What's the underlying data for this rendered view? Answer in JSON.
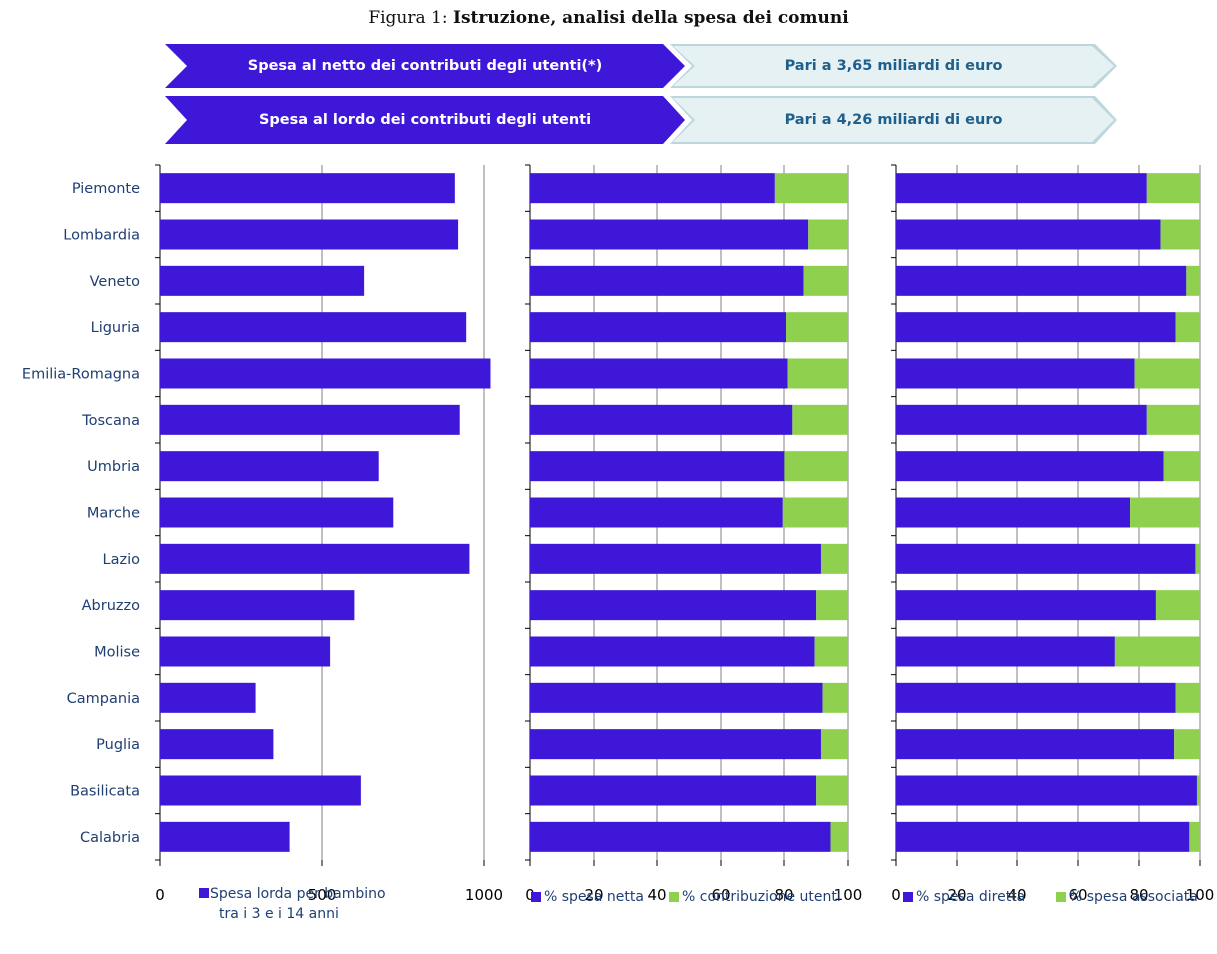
{
  "title_prefix": "Figura 1:",
  "title_main": "Istruzione, analisi della spesa dei comuni",
  "banners": [
    {
      "left": "Spesa al netto dei contributi degli utenti(*)",
      "right": "Pari a 3,65 miliardi di euro"
    },
    {
      "left": "Spesa al lordo dei contributi degli utenti",
      "right": "Pari a 4,26 miliardi di euro"
    }
  ],
  "colors": {
    "blue": "#3f17d8",
    "green": "#8fd14f",
    "label": "#1f3f73",
    "grid": "#808080"
  },
  "chart_data": [
    {
      "type": "bar",
      "orientation": "horizontal",
      "categories": [
        "Piemonte",
        "Lombardia",
        "Veneto",
        "Liguria",
        "Emilia-Romagna",
        "Toscana",
        "Umbria",
        "Marche",
        "Lazio",
        "Abruzzo",
        "Molise",
        "Campania",
        "Puglia",
        "Basilicata",
        "Calabria"
      ],
      "series": [
        {
          "name": "Spesa lorda per bambino tra i 3 e i 14 anni",
          "values": [
            910,
            920,
            630,
            945,
            1020,
            925,
            675,
            720,
            955,
            600,
            525,
            295,
            350,
            620,
            400
          ]
        }
      ],
      "xlim": [
        0,
        1000
      ],
      "xticks": [
        "0",
        "500",
        "1000"
      ],
      "legend_lines": [
        "Spesa lorda per bambino",
        "tra i 3 e i 14 anni"
      ],
      "grid": true
    },
    {
      "type": "bar",
      "orientation": "horizontal",
      "stacked": true,
      "categories": [
        "Piemonte",
        "Lombardia",
        "Veneto",
        "Liguria",
        "Emilia-Romagna",
        "Toscana",
        "Umbria",
        "Marche",
        "Lazio",
        "Abruzzo",
        "Molise",
        "Campania",
        "Puglia",
        "Basilicata",
        "Calabria"
      ],
      "series": [
        {
          "name": "% spesa netta",
          "values": [
            77,
            87.5,
            86,
            80.5,
            81,
            82.5,
            80,
            79.5,
            91.5,
            90,
            89.5,
            92,
            91.5,
            90,
            94.5
          ]
        },
        {
          "name": "% contribuzione utenti",
          "values": [
            23,
            12.5,
            14,
            19.5,
            19,
            17.5,
            20,
            20.5,
            8.5,
            10,
            10.5,
            8,
            8.5,
            10,
            5.5
          ]
        }
      ],
      "xlim": [
        0,
        100
      ],
      "xticks": [
        "0",
        "20",
        "40",
        "60",
        "80",
        "100"
      ],
      "grid": true
    },
    {
      "type": "bar",
      "orientation": "horizontal",
      "stacked": true,
      "categories": [
        "Piemonte",
        "Lombardia",
        "Veneto",
        "Liguria",
        "Emilia-Romagna",
        "Toscana",
        "Umbria",
        "Marche",
        "Lazio",
        "Abruzzo",
        "Molise",
        "Campania",
        "Puglia",
        "Basilicata",
        "Calabria"
      ],
      "series": [
        {
          "name": "% spesa diretta",
          "values": [
            82.5,
            87,
            95.5,
            92,
            78.5,
            82.5,
            88,
            77,
            98.5,
            85.5,
            72,
            92,
            91.5,
            99,
            96.5
          ]
        },
        {
          "name": "% spesa associata",
          "values": [
            17.5,
            13,
            4.5,
            8,
            21.5,
            17.5,
            12,
            23,
            1.5,
            14.5,
            28,
            8,
            8.5,
            1,
            3.5
          ]
        }
      ],
      "xlim": [
        0,
        100
      ],
      "xticks": [
        "0",
        "20",
        "40",
        "60",
        "80",
        "100"
      ],
      "grid": true
    }
  ]
}
